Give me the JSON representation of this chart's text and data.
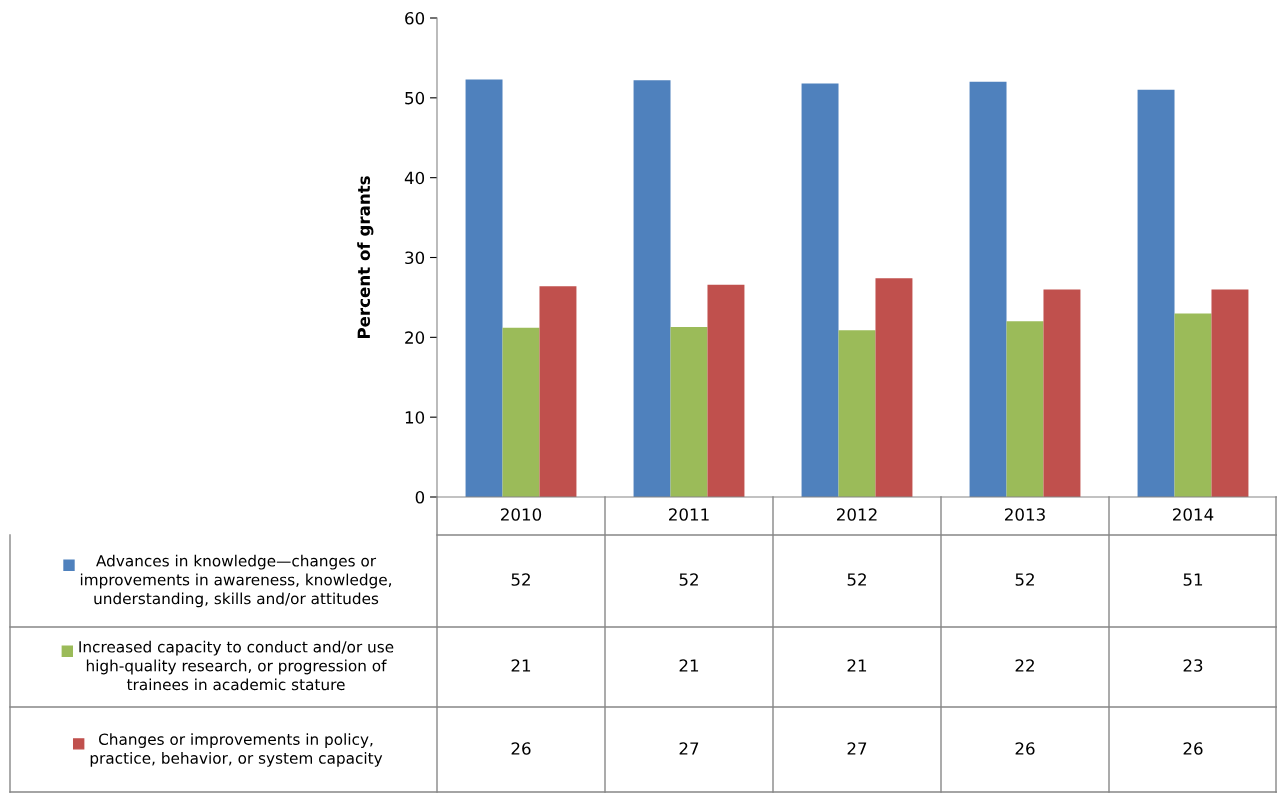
{
  "chart_data": {
    "type": "bar",
    "ylabel": "Percent of grants",
    "categories": [
      "2010",
      "2011",
      "2012",
      "2013",
      "2014"
    ],
    "series": [
      {
        "name": "Advances in knowledge—changes or\nimprovements in awareness, knowledge,\nunderstanding, skills and/or attitudes",
        "color": "#4f81bd",
        "values": [
          52.3,
          52.2,
          51.8,
          52.0,
          51.0
        ],
        "value_labels": [
          "52",
          "52",
          "52",
          "52",
          "51"
        ]
      },
      {
        "name": "Increased capacity to conduct and/or use\nhigh-quality research, or progression of\ntrainees in academic stature",
        "color": "#9bbb59",
        "values": [
          21.2,
          21.3,
          20.9,
          22.0,
          23.0
        ],
        "value_labels": [
          "21",
          "21",
          "21",
          "22",
          "23"
        ]
      },
      {
        "name": "Changes or improvements in policy,\npractice, behavior, or system capacity",
        "color": "#c0504d",
        "values": [
          26.4,
          26.6,
          27.4,
          26.0,
          26.0
        ],
        "value_labels": [
          "26",
          "27",
          "27",
          "26",
          "26"
        ]
      }
    ],
    "ylim": [
      0,
      60
    ],
    "yticks": [
      0,
      10,
      20,
      30,
      40,
      50,
      60
    ],
    "grid": false,
    "legend": "bottom"
  }
}
